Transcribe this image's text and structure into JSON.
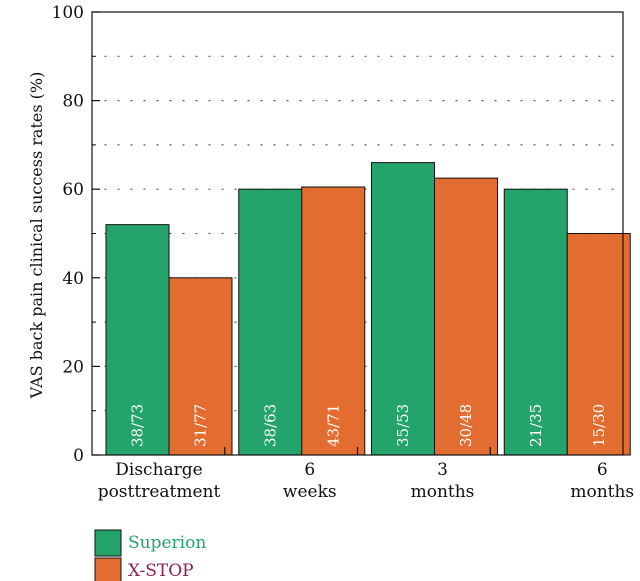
{
  "chart_data": {
    "type": "bar",
    "title": "",
    "ylabel": "VAS back pain clinical success rates (%)",
    "xlabel": "",
    "ylim": [
      0,
      100
    ],
    "yticks": [
      0,
      20,
      40,
      60,
      80,
      100
    ],
    "grid": "dotted horizontal",
    "categories": [
      [
        "Discharge",
        "posttreatment"
      ],
      [
        "6",
        "weeks"
      ],
      [
        "3",
        "months"
      ],
      [
        "6",
        "months"
      ]
    ],
    "series": [
      {
        "name": "Superion",
        "color": "#24a36b",
        "values": [
          52,
          60,
          66,
          60
        ],
        "labels": [
          "38/73",
          "38/63",
          "35/53",
          "21/35"
        ]
      },
      {
        "name": "X-STOP",
        "color": "#e36c30",
        "values": [
          40,
          60.5,
          62.5,
          50
        ],
        "labels": [
          "31/77",
          "43/71",
          "30/48",
          "15/30"
        ]
      }
    ],
    "legend": {
      "position": "bottom-left",
      "text_colors": [
        "#24a36b",
        "#8b1f5e"
      ]
    }
  }
}
